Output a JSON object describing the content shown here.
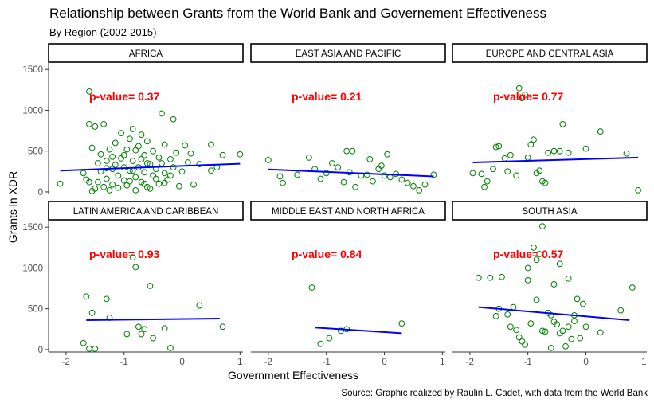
{
  "title": "Relationship between Grants from the World Bank and Governement Effectiveness",
  "subtitle": "By Region (2002-2015)",
  "caption": "Source: Graphic realized by Raulin L. Cadet, with data from the World Bank",
  "xlabel": "Government Effectiveness",
  "ylabel": "Grants in XDR",
  "chart_data": {
    "type": "scatter",
    "facets": true,
    "xlim": [
      -2.3,
      1.05
    ],
    "ylim": [
      -30,
      1580
    ],
    "x_ticks": [
      -2,
      -1,
      0,
      1
    ],
    "y_ticks": [
      0,
      500,
      1000,
      1500
    ],
    "grid": false,
    "point_color": "#008000",
    "line_color": "#0000ff",
    "annotation_color": "#ff0000",
    "panels": [
      {
        "name": "AFRICA",
        "annotation": "p-value= 0.37",
        "fit": {
          "x": [
            -2.1,
            1.0
          ],
          "y": [
            260,
            345
          ]
        },
        "points": [
          [
            -2.1,
            100
          ],
          [
            -1.7,
            230
          ],
          [
            -1.65,
            150
          ],
          [
            -1.6,
            1230
          ],
          [
            -1.6,
            830
          ],
          [
            -1.55,
            540
          ],
          [
            -1.55,
            10
          ],
          [
            -1.5,
            40
          ],
          [
            -1.5,
            800
          ],
          [
            -1.45,
            350
          ],
          [
            -1.45,
            120
          ],
          [
            -1.4,
            460
          ],
          [
            -1.4,
            250
          ],
          [
            -1.35,
            60
          ],
          [
            -1.35,
            830
          ],
          [
            -1.3,
            380
          ],
          [
            -1.3,
            160
          ],
          [
            -1.25,
            520
          ],
          [
            -1.25,
            20
          ],
          [
            -1.2,
            280
          ],
          [
            -1.2,
            90
          ],
          [
            -1.15,
            600
          ],
          [
            -1.15,
            330
          ],
          [
            -1.1,
            200
          ],
          [
            -1.1,
            50
          ],
          [
            -1.05,
            720
          ],
          [
            -1.05,
            410
          ],
          [
            -1.0,
            300
          ],
          [
            -1.0,
            140
          ],
          [
            -0.95,
            520
          ],
          [
            -0.95,
            80
          ],
          [
            -0.9,
            650
          ],
          [
            -0.9,
            260
          ],
          [
            -0.85,
            770
          ],
          [
            -0.85,
            380
          ],
          [
            -0.8,
            180
          ],
          [
            -0.8,
            20
          ],
          [
            -0.75,
            560
          ],
          [
            -0.75,
            300
          ],
          [
            -0.7,
            700
          ],
          [
            -0.7,
            120
          ],
          [
            -0.65,
            450
          ],
          [
            -0.65,
            240
          ],
          [
            -0.6,
            620
          ],
          [
            -0.6,
            60
          ],
          [
            -0.55,
            340
          ],
          [
            -0.5,
            500
          ],
          [
            -0.5,
            200
          ],
          [
            -0.45,
            280
          ],
          [
            -0.4,
            420
          ],
          [
            -0.4,
            100
          ],
          [
            -0.35,
            960
          ],
          [
            -0.35,
            350
          ],
          [
            -0.3,
            580
          ],
          [
            -0.3,
            230
          ],
          [
            -0.25,
            150
          ],
          [
            -0.2,
            400
          ],
          [
            -0.15,
            890
          ],
          [
            -0.15,
            300
          ],
          [
            -0.1,
            480
          ],
          [
            -0.05,
            70
          ],
          [
            0.0,
            250
          ],
          [
            0.05,
            570
          ],
          [
            0.1,
            360
          ],
          [
            0.15,
            470
          ],
          [
            0.2,
            90
          ],
          [
            0.5,
            580
          ],
          [
            0.5,
            260
          ],
          [
            0.6,
            300
          ],
          [
            0.7,
            450
          ],
          [
            1.0,
            460
          ],
          [
            -1.0,
            450
          ],
          [
            -0.8,
            510
          ],
          [
            -0.7,
            400
          ],
          [
            -0.6,
            350
          ],
          [
            -0.45,
            160
          ],
          [
            -0.3,
            110
          ],
          [
            -1.2,
            430
          ],
          [
            -0.9,
            130
          ],
          [
            -0.55,
            40
          ],
          [
            -1.3,
            290
          ],
          [
            -0.2,
            200
          ],
          [
            0.3,
            340
          ],
          [
            -1.6,
            120
          ],
          [
            -0.85,
            260
          ],
          [
            -0.65,
            100
          ]
        ]
      },
      {
        "name": "EAST ASIA AND PACIFIC",
        "annotation": "p-value= 0.21",
        "fit": {
          "x": [
            -2.0,
            0.85
          ],
          "y": [
            275,
            190
          ]
        },
        "points": [
          [
            -2.0,
            390
          ],
          [
            -1.8,
            190
          ],
          [
            -1.75,
            110
          ],
          [
            -1.5,
            210
          ],
          [
            -1.3,
            420
          ],
          [
            -1.2,
            280
          ],
          [
            -1.1,
            160
          ],
          [
            -1.0,
            230
          ],
          [
            -0.9,
            350
          ],
          [
            -0.8,
            300
          ],
          [
            -0.7,
            120
          ],
          [
            -0.65,
            500
          ],
          [
            -0.6,
            240
          ],
          [
            -0.55,
            500
          ],
          [
            -0.5,
            60
          ],
          [
            -0.4,
            200
          ],
          [
            -0.3,
            210
          ],
          [
            -0.25,
            400
          ],
          [
            -0.2,
            130
          ],
          [
            -0.1,
            280
          ],
          [
            -0.05,
            320
          ],
          [
            0.0,
            200
          ],
          [
            0.05,
            460
          ],
          [
            0.1,
            180
          ],
          [
            0.2,
            220
          ],
          [
            0.3,
            150
          ],
          [
            0.4,
            110
          ],
          [
            0.5,
            70
          ],
          [
            0.6,
            20
          ],
          [
            0.7,
            90
          ],
          [
            0.85,
            210
          ]
        ]
      },
      {
        "name": "EUROPE AND CENTRAL ASIA",
        "annotation": "p-value= 0.77",
        "fit": {
          "x": [
            -1.95,
            0.9
          ],
          "y": [
            360,
            420
          ]
        },
        "points": [
          [
            -1.95,
            230
          ],
          [
            -1.8,
            220
          ],
          [
            -1.75,
            60
          ],
          [
            -1.7,
            130
          ],
          [
            -1.6,
            280
          ],
          [
            -1.55,
            550
          ],
          [
            -1.5,
            560
          ],
          [
            -1.4,
            410
          ],
          [
            -1.35,
            250
          ],
          [
            -1.3,
            450
          ],
          [
            -1.2,
            200
          ],
          [
            -1.15,
            1270
          ],
          [
            -1.1,
            1150
          ],
          [
            -1.05,
            1190
          ],
          [
            -1.0,
            420
          ],
          [
            -0.95,
            580
          ],
          [
            -0.9,
            640
          ],
          [
            -0.85,
            230
          ],
          [
            -0.8,
            260
          ],
          [
            -0.75,
            130
          ],
          [
            -0.7,
            110
          ],
          [
            -0.65,
            480
          ],
          [
            -0.55,
            500
          ],
          [
            -0.45,
            500
          ],
          [
            -0.4,
            830
          ],
          [
            -0.3,
            480
          ],
          [
            0.0,
            530
          ],
          [
            0.25,
            740
          ],
          [
            0.7,
            470
          ],
          [
            0.9,
            20
          ]
        ]
      },
      {
        "name": "LATIN AMERICA AND CARIBBEAN",
        "annotation": "p-value= 0.93",
        "fit": {
          "x": [
            -1.65,
            0.65
          ],
          "y": [
            360,
            380
          ]
        },
        "points": [
          [
            -1.7,
            80
          ],
          [
            -1.65,
            650
          ],
          [
            -1.6,
            10
          ],
          [
            -1.55,
            450
          ],
          [
            -1.5,
            10
          ],
          [
            -1.3,
            620
          ],
          [
            -1.25,
            390
          ],
          [
            -0.95,
            190
          ],
          [
            -0.85,
            1130
          ],
          [
            -0.8,
            1010
          ],
          [
            -0.75,
            280
          ],
          [
            -0.7,
            190
          ],
          [
            -0.65,
            250
          ],
          [
            -0.55,
            780
          ],
          [
            -0.5,
            140
          ],
          [
            -0.3,
            260
          ],
          [
            -0.2,
            20
          ],
          [
            0.3,
            540
          ],
          [
            0.7,
            280
          ]
        ]
      },
      {
        "name": "MIDDLE EAST AND NORTH AFRICA",
        "annotation": "p-value= 0.84",
        "fit": {
          "x": [
            -1.2,
            0.3
          ],
          "y": [
            270,
            200
          ]
        },
        "points": [
          [
            -1.25,
            760
          ],
          [
            -1.1,
            70
          ],
          [
            -0.95,
            140
          ],
          [
            -0.75,
            230
          ],
          [
            -0.65,
            250
          ],
          [
            0.3,
            320
          ]
        ]
      },
      {
        "name": "SOUTH ASIA",
        "annotation": "p-value= 0.57",
        "fit": {
          "x": [
            -1.85,
            0.75
          ],
          "y": [
            520,
            360
          ]
        },
        "points": [
          [
            -1.85,
            880
          ],
          [
            -1.65,
            880
          ],
          [
            -1.55,
            410
          ],
          [
            -1.5,
            500
          ],
          [
            -1.45,
            890
          ],
          [
            -1.35,
            430
          ],
          [
            -1.3,
            280
          ],
          [
            -1.25,
            520
          ],
          [
            -1.2,
            240
          ],
          [
            -1.15,
            150
          ],
          [
            -1.1,
            100
          ],
          [
            -1.05,
            60
          ],
          [
            -1.0,
            1000
          ],
          [
            -0.95,
            320
          ],
          [
            -0.9,
            1250
          ],
          [
            -0.85,
            1100
          ],
          [
            -0.8,
            1170
          ],
          [
            -0.75,
            1510
          ],
          [
            -0.7,
            220
          ],
          [
            -0.65,
            450
          ],
          [
            -0.6,
            20
          ],
          [
            -0.55,
            340
          ],
          [
            -0.5,
            310
          ],
          [
            -0.45,
            200
          ],
          [
            -0.4,
            230
          ],
          [
            -0.35,
            40
          ],
          [
            -0.3,
            870
          ],
          [
            -0.25,
            130
          ],
          [
            -0.2,
            420
          ],
          [
            -0.15,
            620
          ],
          [
            -0.1,
            140
          ],
          [
            -0.05,
            560
          ],
          [
            0.0,
            280
          ],
          [
            0.25,
            210
          ],
          [
            0.6,
            480
          ],
          [
            0.8,
            760
          ],
          [
            -1.0,
            850
          ],
          [
            -0.75,
            230
          ],
          [
            -0.6,
            420
          ],
          [
            -0.3,
            280
          ],
          [
            -0.55,
            800
          ],
          [
            -0.45,
            1050
          ],
          [
            -0.85,
            610
          ],
          [
            -0.2,
            350
          ]
        ]
      }
    ]
  }
}
